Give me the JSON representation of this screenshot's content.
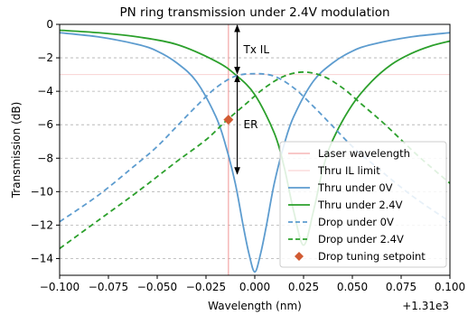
{
  "chart_data": {
    "type": "line",
    "title": "PN ring transmission under 2.4V modulation",
    "xlabel": "Wavelength (nm)",
    "ylabel": "Transmission (dB)",
    "x_offset_label": "+1.31e3",
    "xlim": [
      -0.1,
      0.1
    ],
    "ylim": [
      -15,
      0
    ],
    "xticks": [
      -0.1,
      -0.075,
      -0.05,
      -0.025,
      0.0,
      0.025,
      0.05,
      0.075,
      0.1
    ],
    "xtick_labels": [
      "−0.100",
      "−0.075",
      "−0.050",
      "−0.025",
      "0.000",
      "0.025",
      "0.050",
      "0.075",
      "0.100"
    ],
    "yticks": [
      0,
      -2,
      -4,
      -6,
      -8,
      -10,
      -12,
      -14
    ],
    "ytick_labels": [
      "0",
      "−2",
      "−4",
      "−6",
      "−8",
      "−10",
      "−12",
      "−14"
    ],
    "grid": "horizontal dashed",
    "legend_position": "lower-right",
    "laser_wavelength_x": -0.0135,
    "thru_il_limit_y": -3.0,
    "series": [
      {
        "name": "Thru under 0V",
        "color": "#5d9ccf",
        "style": "solid",
        "x": [
          -0.1,
          -0.08,
          -0.06,
          -0.05,
          -0.04,
          -0.03,
          -0.02,
          -0.015,
          -0.01,
          -0.006,
          -0.003,
          0.0,
          0.003,
          0.006,
          0.01,
          0.015,
          0.02,
          0.03,
          0.04,
          0.05,
          0.06,
          0.08,
          0.1
        ],
        "y": [
          -0.5,
          -0.75,
          -1.2,
          -1.6,
          -2.3,
          -3.4,
          -5.5,
          -7.2,
          -9.5,
          -12.0,
          -13.7,
          -14.8,
          -13.7,
          -12.0,
          -9.5,
          -7.2,
          -5.5,
          -3.4,
          -2.3,
          -1.6,
          -1.2,
          -0.75,
          -0.5
        ]
      },
      {
        "name": "Thru under 2.4V",
        "color": "#2ca02c",
        "style": "solid",
        "x": [
          -0.1,
          -0.08,
          -0.06,
          -0.04,
          -0.02,
          -0.01,
          0.0,
          0.01,
          0.015,
          0.02,
          0.025,
          0.03,
          0.035,
          0.04,
          0.05,
          0.06,
          0.07,
          0.08,
          0.09,
          0.1
        ],
        "y": [
          -0.35,
          -0.5,
          -0.75,
          -1.2,
          -2.2,
          -3.0,
          -4.2,
          -6.5,
          -8.5,
          -11.2,
          -13.2,
          -11.2,
          -8.6,
          -6.9,
          -4.8,
          -3.4,
          -2.4,
          -1.75,
          -1.3,
          -1.0
        ]
      },
      {
        "name": "Drop under 0V",
        "color": "#5d9ccf",
        "style": "dashed",
        "x": [
          -0.1,
          -0.08,
          -0.06,
          -0.05,
          -0.04,
          -0.03,
          -0.02,
          -0.01,
          0.0,
          0.01,
          0.02,
          0.03,
          0.04,
          0.05,
          0.06,
          0.08,
          0.1
        ],
        "y": [
          -11.8,
          -10.2,
          -8.3,
          -7.3,
          -6.1,
          -4.9,
          -3.8,
          -3.1,
          -2.95,
          -3.1,
          -3.8,
          -4.9,
          -6.1,
          -7.3,
          -8.3,
          -10.2,
          -11.8
        ]
      },
      {
        "name": "Drop under 2.4V",
        "color": "#2ca02c",
        "style": "dashed",
        "x": [
          -0.1,
          -0.08,
          -0.06,
          -0.04,
          -0.025,
          -0.015,
          -0.005,
          0.005,
          0.015,
          0.025,
          0.035,
          0.045,
          0.055,
          0.065,
          0.075,
          0.085,
          0.1
        ],
        "y": [
          -13.4,
          -11.7,
          -10.0,
          -8.2,
          -6.9,
          -5.8,
          -4.8,
          -3.8,
          -3.1,
          -2.85,
          -3.1,
          -3.8,
          -4.8,
          -5.8,
          -6.9,
          -8.0,
          -9.5
        ]
      }
    ],
    "setpoint": {
      "name": "Drop tuning setpoint",
      "x": -0.0135,
      "y": -5.7,
      "color": "#d15b33"
    },
    "annotations": [
      {
        "text": "Tx IL",
        "x1": -0.009,
        "y1": 0.0,
        "y2": -3.0
      },
      {
        "text": "ER",
        "x1": -0.009,
        "y1": -3.0,
        "y2": -9.0
      }
    ],
    "legend": [
      {
        "label": "Laser wavelength",
        "kind": "line",
        "color": "#f4a6a6",
        "style": "solid"
      },
      {
        "label": "Thru IL limit",
        "kind": "line",
        "color": "#f9d3d3",
        "style": "solid"
      },
      {
        "label": "Thru under 0V",
        "kind": "line",
        "color": "#5d9ccf",
        "style": "solid"
      },
      {
        "label": "Thru under 2.4V",
        "kind": "line",
        "color": "#2ca02c",
        "style": "solid"
      },
      {
        "label": "Drop under 0V",
        "kind": "line",
        "color": "#5d9ccf",
        "style": "dashed"
      },
      {
        "label": "Drop under 2.4V",
        "kind": "line",
        "color": "#2ca02c",
        "style": "dashed"
      },
      {
        "label": "Drop tuning setpoint",
        "kind": "marker",
        "color": "#d15b33"
      }
    ]
  }
}
